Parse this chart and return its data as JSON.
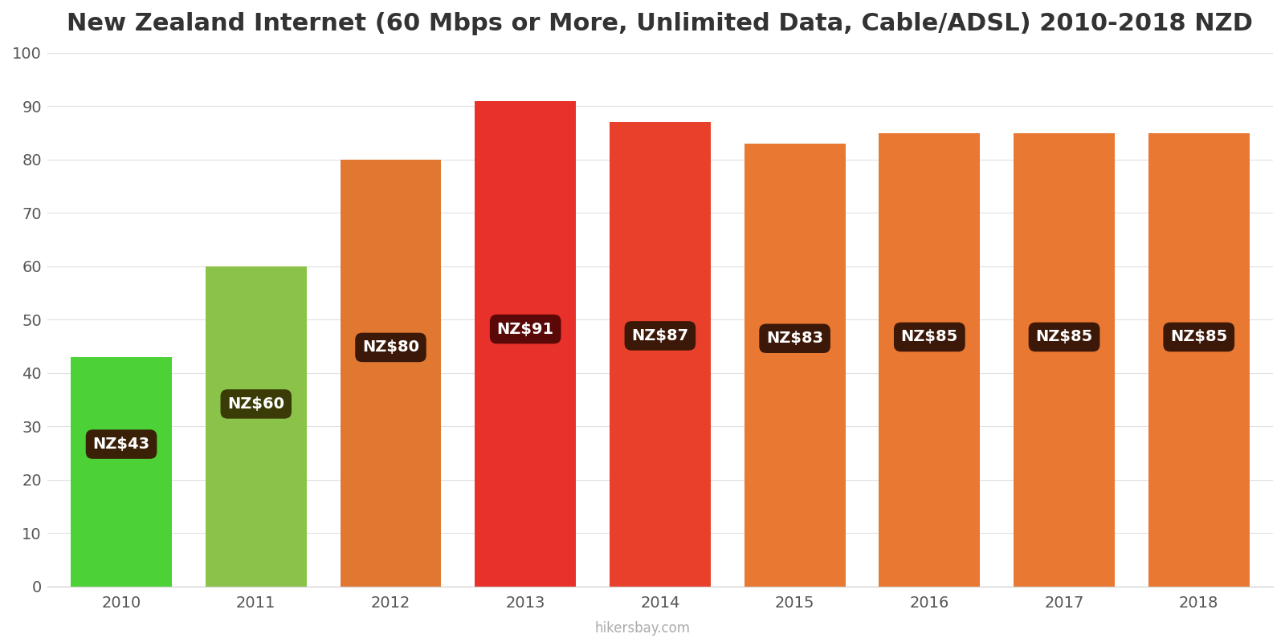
{
  "title": "New Zealand Internet (60 Mbps or More, Unlimited Data, Cable/ADSL) 2010-2018 NZD",
  "years": [
    2010,
    2011,
    2012,
    2013,
    2014,
    2015,
    2016,
    2017,
    2018
  ],
  "values": [
    43,
    60,
    80,
    91,
    87,
    83,
    85,
    85,
    85
  ],
  "bar_colors": [
    "#4cd137",
    "#8bc34a",
    "#e07832",
    "#e8312a",
    "#e8402a",
    "#e87832",
    "#e87832",
    "#e87832",
    "#e87832"
  ],
  "labels": [
    "NZ$43",
    "NZ$60",
    "NZ$80",
    "NZ$91",
    "NZ$87",
    "NZ$83",
    "NZ$85",
    "NZ$85",
    "NZ$85"
  ],
  "label_bg_colors": [
    "#3b2008",
    "#3b3b08",
    "#3b1808",
    "#5a0808",
    "#3b1808",
    "#3b1808",
    "#3b1808",
    "#3b1808",
    "#3b1808"
  ],
  "label_y_fractions": [
    0.62,
    0.57,
    0.56,
    0.53,
    0.54,
    0.56,
    0.55,
    0.55,
    0.55
  ],
  "ylim": [
    0,
    100
  ],
  "background_color": "#ffffff",
  "title_fontsize": 22,
  "title_color": "#333333",
  "tick_color": "#555555",
  "tick_fontsize": 14,
  "grid_color": "#e0e0e0",
  "footer_text": "hikersbay.com",
  "footer_color": "#aaaaaa",
  "bar_width": 0.75
}
